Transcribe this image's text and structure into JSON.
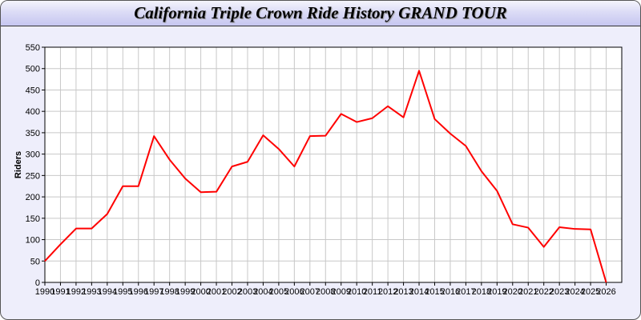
{
  "chart_data": {
    "type": "line",
    "title": "California Triple Crown Ride History GRAND TOUR",
    "xlabel": "",
    "ylabel": "Riders",
    "xlim": [
      1990,
      2027
    ],
    "ylim": [
      0,
      550
    ],
    "yticks": [
      0,
      50,
      100,
      150,
      200,
      250,
      300,
      350,
      400,
      450,
      500,
      550
    ],
    "grid": true,
    "line_color": "#ff0000",
    "x": [
      1990,
      1991,
      1992,
      1993,
      1994,
      1995,
      1996,
      1997,
      1998,
      1999,
      2000,
      2001,
      2002,
      2003,
      2004,
      2005,
      2006,
      2007,
      2008,
      2009,
      2010,
      2011,
      2012,
      2013,
      2014,
      2015,
      2016,
      2017,
      2018,
      2019,
      2020,
      2021,
      2022,
      2023,
      2024,
      2025,
      2026
    ],
    "series": [
      {
        "values": [
          50,
          89,
          126,
          126,
          160,
          225,
          225,
          342,
          287,
          243,
          211,
          212,
          271,
          282,
          344,
          312,
          271,
          342,
          343,
          394,
          375,
          384,
          412,
          386,
          495,
          382,
          348,
          319,
          260,
          214,
          136,
          128,
          83,
          129,
          125,
          124,
          0
        ]
      }
    ]
  }
}
